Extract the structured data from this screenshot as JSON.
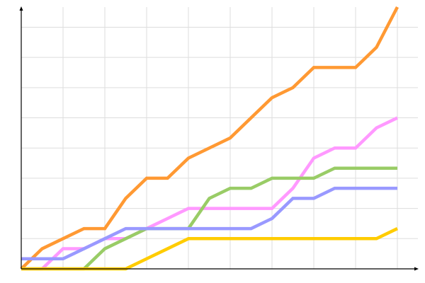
{
  "chart_data": {
    "type": "line",
    "title": "",
    "xlabel": "",
    "ylabel": "",
    "x": [
      0,
      1,
      2,
      3,
      4,
      5,
      6,
      7,
      8,
      9,
      10,
      11,
      12,
      13,
      14,
      15,
      16,
      17,
      18
    ],
    "xlim": [
      0,
      18
    ],
    "ylim": [
      0,
      26
    ],
    "x_grid_every": 2,
    "y_grid_every": 3,
    "grid": true,
    "tick_labels": false,
    "legend": "none",
    "series": [
      {
        "color": "#ff9933",
        "values": [
          0,
          2,
          3,
          4,
          4,
          7,
          9,
          9,
          11,
          12,
          13,
          15,
          17,
          18,
          20,
          20,
          20,
          22,
          26
        ]
      },
      {
        "color": "#ff99ff",
        "values": [
          0,
          0,
          2,
          2,
          3,
          3,
          4,
          5,
          6,
          6,
          6,
          6,
          6,
          8,
          11,
          12,
          12,
          14,
          15
        ]
      },
      {
        "color": "#99cc66",
        "values": [
          0,
          0,
          0,
          0,
          2,
          3,
          4,
          4,
          4,
          7,
          8,
          8,
          9,
          9,
          9,
          10,
          10,
          10,
          10
        ]
      },
      {
        "color": "#9999ff",
        "values": [
          1,
          1,
          1,
          2,
          3,
          4,
          4,
          4,
          4,
          4,
          4,
          4,
          5,
          7,
          7,
          8,
          8,
          8,
          8
        ]
      },
      {
        "color": "#ffcc00",
        "values": [
          0,
          0,
          0,
          0,
          0,
          0,
          1,
          2,
          3,
          3,
          3,
          3,
          3,
          3,
          3,
          3,
          3,
          3,
          4
        ]
      }
    ],
    "colors": {
      "grid": "#dddddd",
      "axis": "#000000"
    }
  }
}
